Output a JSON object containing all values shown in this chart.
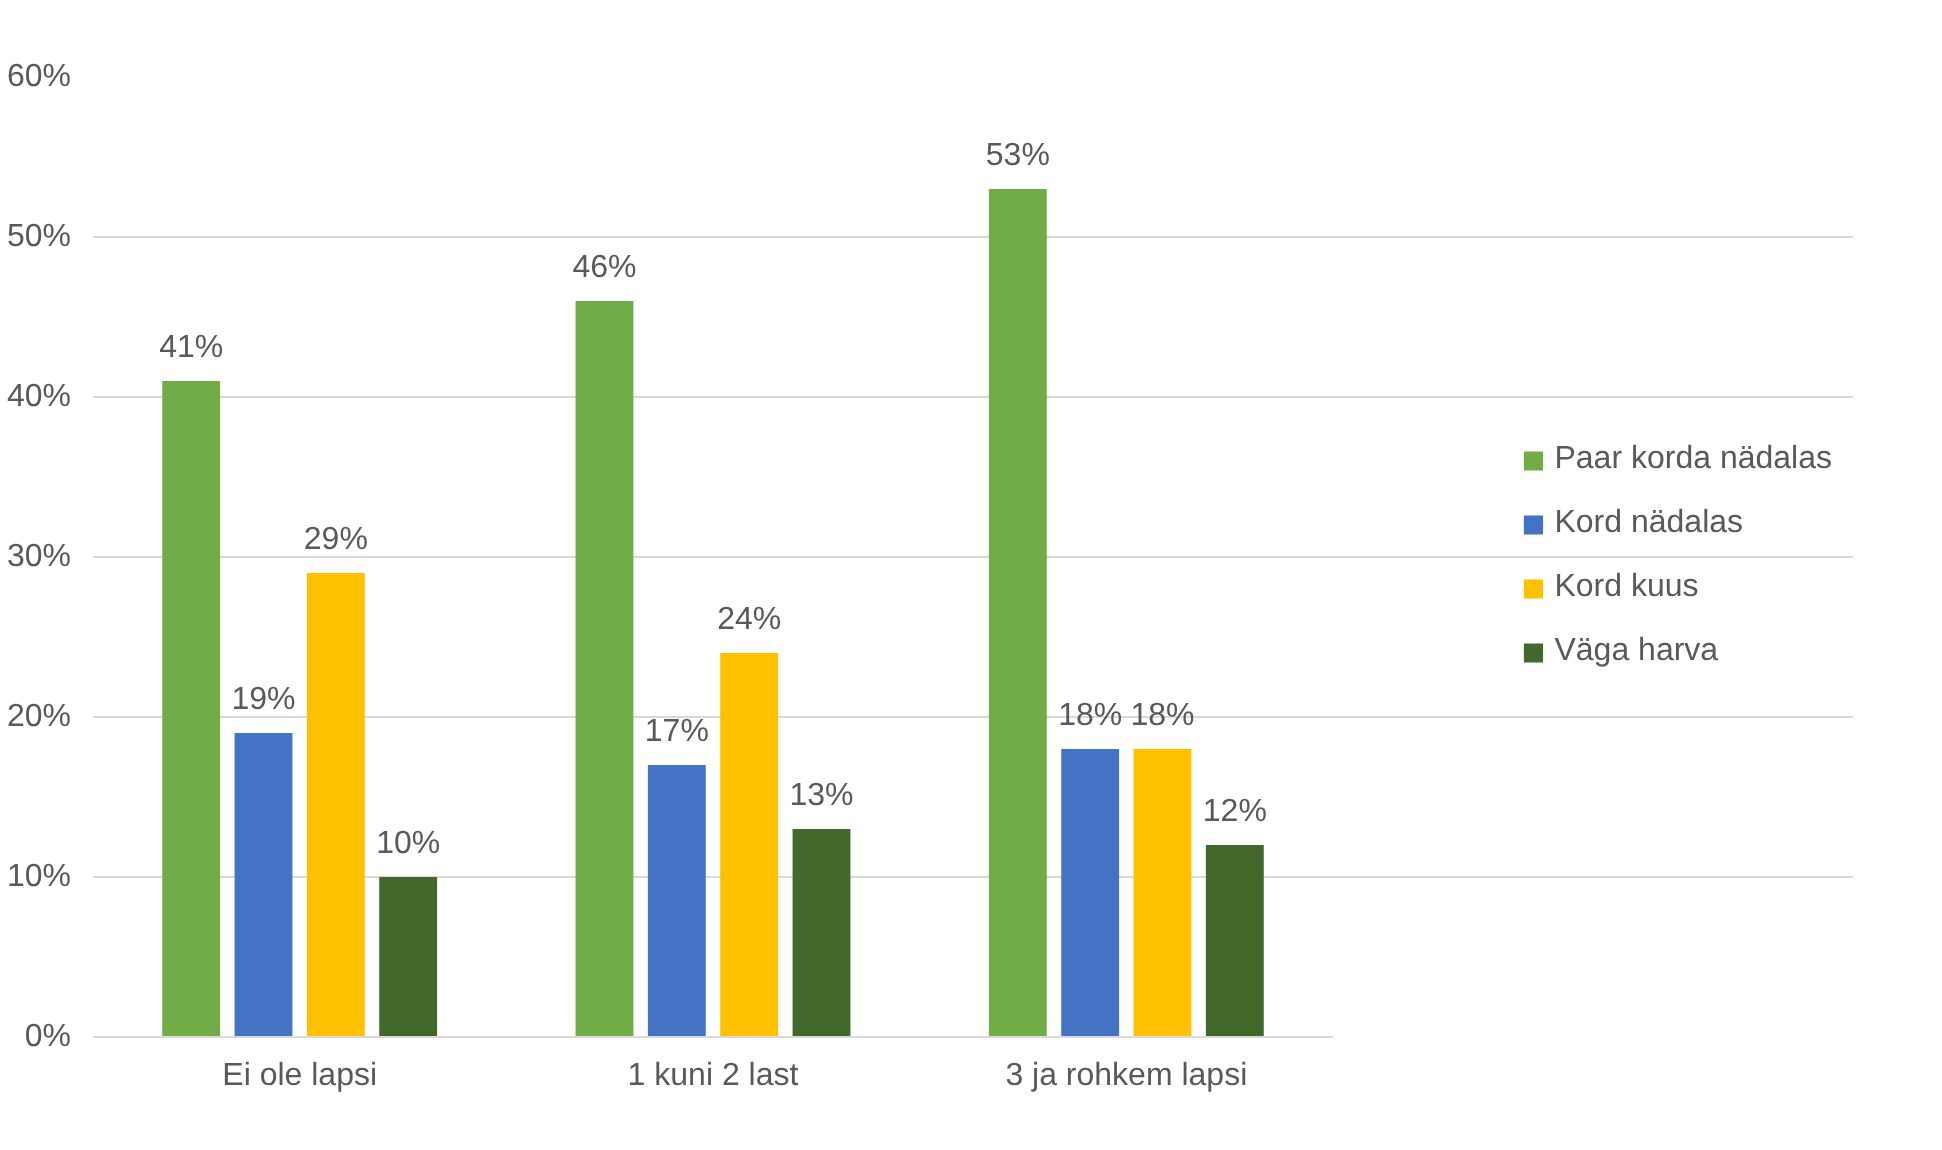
{
  "chart_data": {
    "type": "bar",
    "categories": [
      "Ei ole lapsi",
      "1 kuni 2 last",
      "3 ja rohkem lapsi"
    ],
    "series": [
      {
        "name": "Paar korda nädalas",
        "color": "#70ad47",
        "values": [
          41,
          46,
          53
        ],
        "value_labels": [
          "41%",
          "46%",
          "53%"
        ]
      },
      {
        "name": "Kord nädalas",
        "color": "#4472c4",
        "values": [
          19,
          17,
          18
        ],
        "value_labels": [
          "19%",
          "17%",
          "18%"
        ]
      },
      {
        "name": "Kord kuus",
        "color": "#ffc000",
        "values": [
          29,
          24,
          18
        ],
        "value_labels": [
          "29%",
          "24%",
          "18%"
        ]
      },
      {
        "name": "Väga harva",
        "color": "#43682b",
        "values": [
          10,
          13,
          12
        ],
        "value_labels": [
          "10%",
          "13%",
          "12%"
        ]
      }
    ],
    "ylim": [
      0,
      60
    ],
    "yticks": [
      {
        "value": 0,
        "label": "0%"
      },
      {
        "value": 10,
        "label": "10%"
      },
      {
        "value": 20,
        "label": "20%"
      },
      {
        "value": 30,
        "label": "30%"
      },
      {
        "value": 40,
        "label": "40%"
      },
      {
        "value": 50,
        "label": "50%"
      },
      {
        "value": 60,
        "label": "60%"
      }
    ],
    "grid": "y",
    "legend": "right"
  }
}
